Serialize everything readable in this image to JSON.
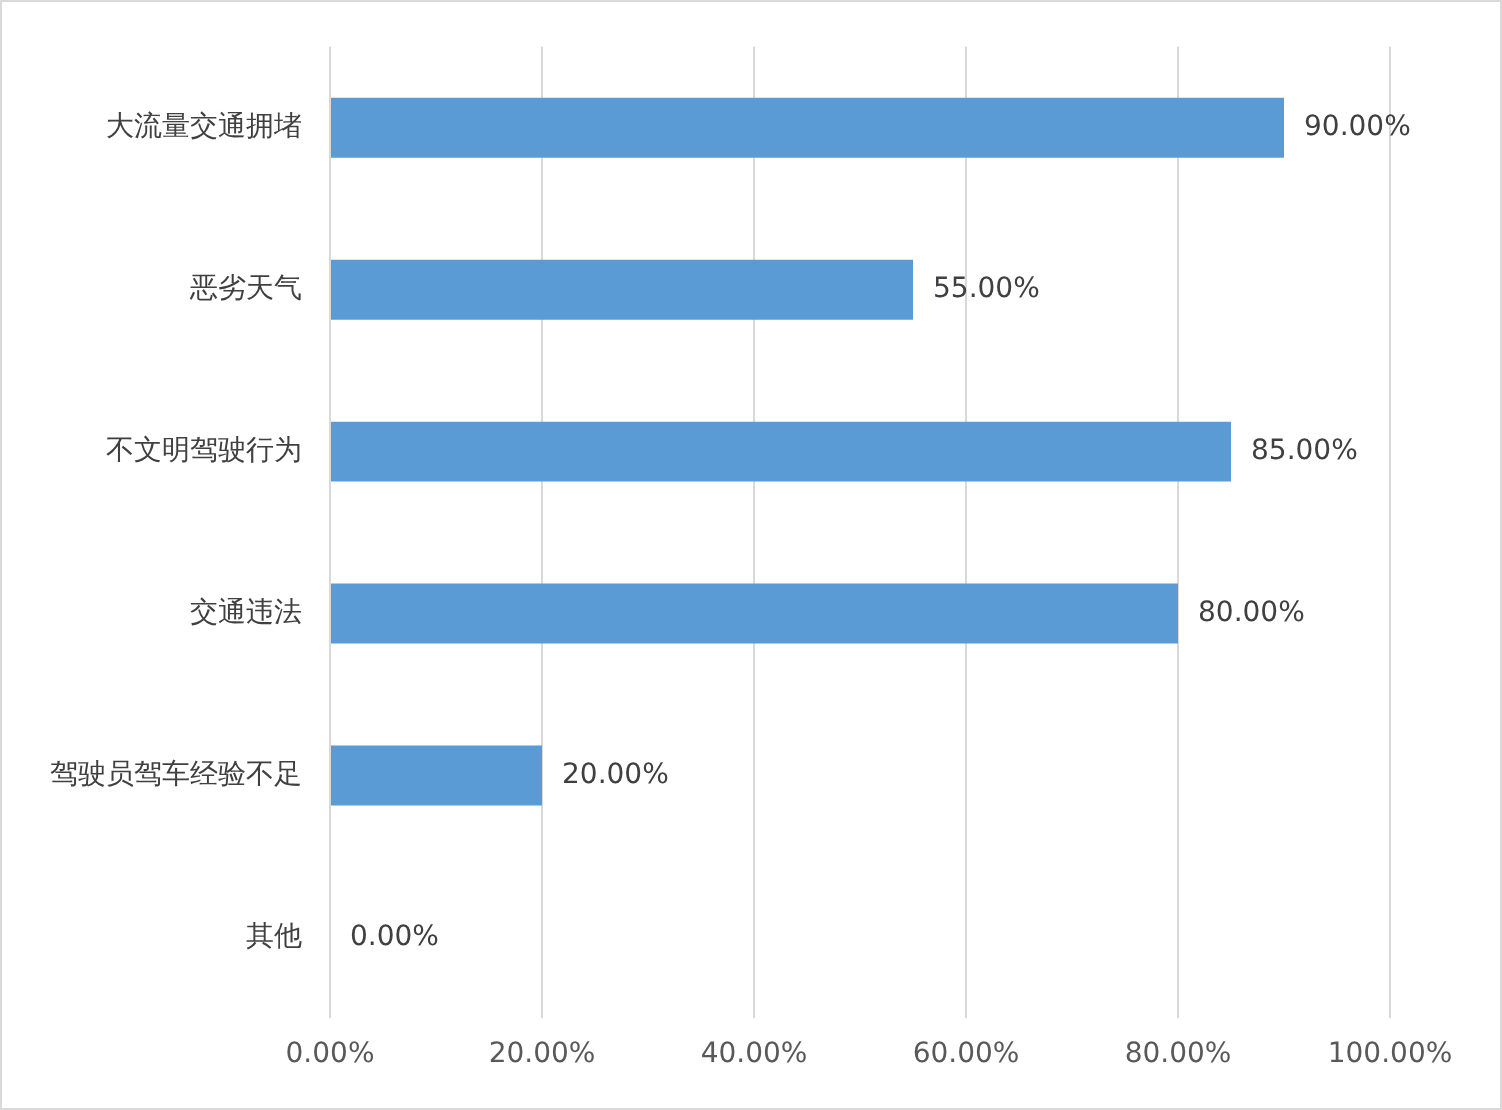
{
  "chart_data": {
    "type": "bar",
    "orientation": "horizontal",
    "categories": [
      "大流量交通拥堵",
      "恶劣天气",
      "不文明驾驶行为",
      "交通违法",
      "驾驶员驾车经验不足",
      "其他"
    ],
    "values": [
      90,
      55,
      85,
      80,
      20,
      0
    ],
    "value_labels": [
      "90.00%",
      "55.00%",
      "85.00%",
      "80.00%",
      "20.00%",
      "0.00%"
    ],
    "color": "#5b9bd5",
    "xlim": [
      0,
      100
    ],
    "xticks": [
      {
        "value": 0,
        "label": "0.00%"
      },
      {
        "value": 20,
        "label": "20.00%"
      },
      {
        "value": 40,
        "label": "40.00%"
      },
      {
        "value": 60,
        "label": "60.00%"
      },
      {
        "value": 80,
        "label": "80.00%"
      },
      {
        "value": 100,
        "label": "100.00%"
      }
    ],
    "grid": "x",
    "legend": false
  }
}
